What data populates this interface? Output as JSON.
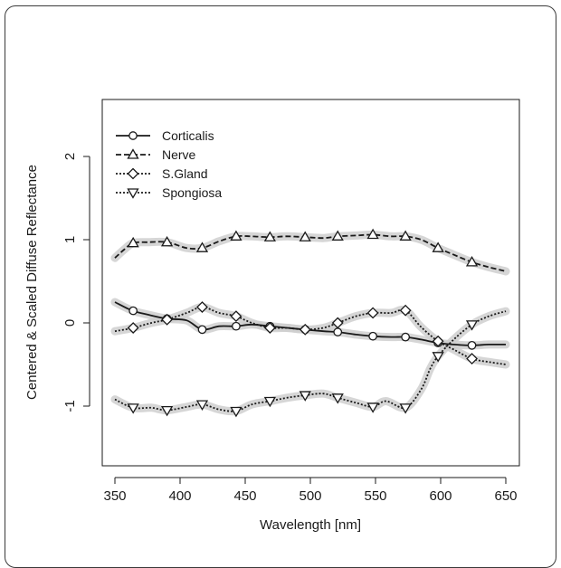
{
  "chart_data": {
    "type": "line",
    "title": "",
    "xlabel": "Wavelength [nm]",
    "ylabel": "Centered & Scaled Diffuse Reflectance",
    "xlim": [
      350,
      650
    ],
    "ylim": [
      -1.6,
      2.6
    ],
    "xticks": [
      "350",
      "400",
      "450",
      "500",
      "550",
      "600",
      "650"
    ],
    "yticks": [
      "-1",
      "0",
      "1",
      "2"
    ],
    "legend_position": "top-left",
    "series": [
      {
        "name": "Corticalis",
        "marker": "circle",
        "line": "solid",
        "x": [
          350,
          363,
          375,
          390,
          405,
          417,
          430,
          443,
          455,
          469,
          482,
          496,
          510,
          521,
          535,
          548,
          562,
          573,
          585,
          598,
          610,
          624,
          637,
          650
        ],
        "y": [
          0.25,
          0.15,
          0.1,
          0.05,
          0.03,
          -0.08,
          -0.04,
          -0.04,
          -0.02,
          -0.04,
          -0.06,
          -0.08,
          -0.1,
          -0.11,
          -0.14,
          -0.16,
          -0.17,
          -0.17,
          -0.2,
          -0.24,
          -0.26,
          -0.27,
          -0.26,
          -0.26
        ],
        "marker_x": [
          364,
          390,
          417,
          443,
          469,
          496,
          521,
          548,
          573,
          598,
          624
        ]
      },
      {
        "name": "Nerve",
        "marker": "triangle-up",
        "line": "dashed",
        "x": [
          350,
          357,
          364,
          375,
          390,
          405,
          417,
          430,
          443,
          455,
          469,
          482,
          496,
          510,
          521,
          535,
          548,
          562,
          573,
          585,
          598,
          610,
          624,
          637,
          650
        ],
        "y": [
          0.78,
          0.88,
          0.96,
          0.97,
          0.97,
          0.9,
          0.9,
          0.98,
          1.04,
          1.04,
          1.03,
          1.04,
          1.03,
          1.02,
          1.04,
          1.05,
          1.06,
          1.04,
          1.04,
          1.0,
          0.9,
          0.82,
          0.73,
          0.67,
          0.62
        ],
        "marker_x": [
          364,
          390,
          417,
          443,
          469,
          496,
          521,
          548,
          573,
          598,
          624
        ]
      },
      {
        "name": "S.Gland",
        "marker": "diamond",
        "line": "dotted",
        "x": [
          350,
          364,
          378,
          390,
          405,
          417,
          430,
          443,
          455,
          469,
          482,
          496,
          510,
          521,
          535,
          548,
          562,
          573,
          585,
          598,
          610,
          624,
          637,
          650
        ],
        "y": [
          -0.1,
          -0.06,
          0.0,
          0.04,
          0.12,
          0.19,
          0.12,
          0.08,
          0.0,
          -0.06,
          -0.06,
          -0.08,
          -0.06,
          0.0,
          0.08,
          0.12,
          0.12,
          0.15,
          -0.05,
          -0.22,
          -0.32,
          -0.43,
          -0.47,
          -0.5
        ],
        "marker_x": [
          364,
          390,
          417,
          443,
          469,
          496,
          521,
          548,
          573,
          598,
          624
        ]
      },
      {
        "name": "Spongiosa",
        "marker": "triangle-down",
        "line": "dotted",
        "x": [
          350,
          364,
          378,
          390,
          405,
          417,
          430,
          443,
          455,
          469,
          482,
          496,
          510,
          521,
          535,
          548,
          558,
          573,
          585,
          592,
          598,
          610,
          624,
          637,
          650
        ],
        "y": [
          -0.92,
          -1.02,
          -1.02,
          -1.05,
          -1.01,
          -0.98,
          -1.04,
          -1.06,
          -0.98,
          -0.94,
          -0.9,
          -0.87,
          -0.85,
          -0.9,
          -0.96,
          -1.01,
          -0.94,
          -1.02,
          -0.8,
          -0.55,
          -0.4,
          -0.2,
          -0.02,
          0.08,
          0.14
        ],
        "marker_x": [
          364,
          390,
          417,
          443,
          469,
          496,
          521,
          548,
          573,
          598,
          624
        ]
      }
    ]
  }
}
